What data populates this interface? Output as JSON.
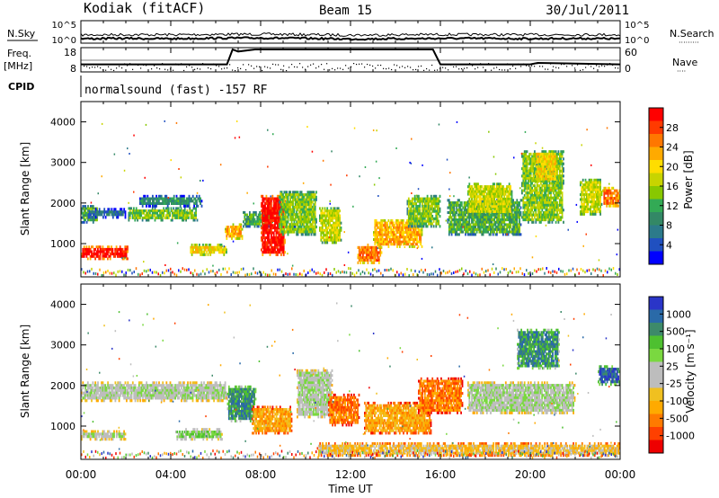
{
  "header": {
    "station": "Kodiak (fitACF)",
    "beam": "Beam 15",
    "date": "30/Jul/2011",
    "cpid_label": "CPID",
    "cpid_value": "normalsound (fast) -157 RF"
  },
  "strip_nsky": {
    "left_label": "N.Sky",
    "right_label": "N.Search",
    "right_dots": "·········",
    "left_ticks": [
      "10^5",
      "10^0"
    ],
    "right_ticks": [
      "10^5",
      "10^0"
    ]
  },
  "strip_freq": {
    "left_label_1": "Freq.",
    "left_label_2": "[MHz]",
    "right_label": "Nave",
    "right_dots": "····",
    "left_ticks": [
      18,
      8
    ],
    "right_ticks": [
      60,
      0
    ]
  },
  "panels": {
    "power": {
      "ylabel": "Slant Range [km]",
      "colorbar_label": "Power [dB]",
      "colorbar_ticks": [
        "28",
        "24",
        "20",
        "16",
        "12",
        "8",
        "4"
      ],
      "colors": [
        "#ff0000",
        "#ff3a00",
        "#ff7700",
        "#ffaa00",
        "#ffdd00",
        "#c8d400",
        "#88c800",
        "#33aa55",
        "#338866",
        "#2c7a8a",
        "#2050c0",
        "#0000ff"
      ]
    },
    "velocity": {
      "ylabel": "Slant Range [km]",
      "colorbar_label": "Velocity [m s⁻¹]",
      "colorbar_ticks": [
        "1000",
        "500",
        "100",
        "25",
        "-25",
        "-100",
        "-500",
        "-1000"
      ],
      "colors": [
        "#2a35c8",
        "#2a6aa8",
        "#3d8a6a",
        "#4ec030",
        "#7ad840",
        "#bdbdbd",
        "#bdbdbd",
        "#f0c020",
        "#ffaa00",
        "#ff7a00",
        "#ff4000",
        "#ee0000"
      ]
    }
  },
  "x_axis": {
    "label": "Time UT",
    "ticks": [
      "00:00",
      "04:00",
      "08:00",
      "12:00",
      "16:00",
      "20:00",
      "00:00"
    ]
  },
  "chart_data": [
    {
      "type": "line",
      "title": "Kodiak (fitACF)",
      "series": [
        {
          "name": "N.Sky",
          "x": [
            "00:00",
            "02:00",
            "04:00",
            "06:00",
            "08:00",
            "10:00",
            "12:00",
            "14:00",
            "16:00",
            "18:00",
            "20:00",
            "22:00",
            "24:00"
          ],
          "values": [
            50,
            60,
            55,
            70,
            80,
            60,
            45,
            55,
            65,
            60,
            55,
            60,
            55
          ]
        },
        {
          "name": "N.Search",
          "x": [
            "00:00",
            "02:00",
            "04:00",
            "06:00",
            "08:00",
            "10:00",
            "12:00",
            "14:00",
            "16:00",
            "18:00",
            "20:00",
            "22:00",
            "24:00"
          ],
          "values": [
            5,
            6,
            5,
            7,
            8,
            6,
            4,
            5,
            6,
            6,
            5,
            6,
            5
          ]
        }
      ],
      "ylim": [
        1,
        100000
      ],
      "yscale": "log"
    },
    {
      "type": "line",
      "series": [
        {
          "name": "Freq.",
          "x": [
            "00:00",
            "06:30",
            "06:45",
            "07:00",
            "07:45",
            "15:40",
            "16:00",
            "20:00",
            "20:20",
            "24:00"
          ],
          "values": [
            10.8,
            10.8,
            18,
            17,
            18,
            18,
            10.8,
            10.8,
            11.5,
            10.8
          ]
        }
      ],
      "ylim": [
        8,
        18
      ]
    },
    {
      "type": "heatmap",
      "title": "Power [dB]",
      "xlabel": "Time UT",
      "ylabel": "Slant Range [km]",
      "xlim": [
        0,
        24
      ],
      "ylim": [
        180,
        4500
      ],
      "yticks": [
        1000,
        2000,
        3000,
        4000
      ],
      "color_scale": [
        4,
        32
      ],
      "regions": [
        {
          "t0": 0.0,
          "t1": 2.1,
          "r0": 600,
          "r1": 950,
          "level": 0
        },
        {
          "t0": 0.0,
          "t1": 0.8,
          "r0": 1500,
          "r1": 1950,
          "level": 7
        },
        {
          "t0": 0.3,
          "t1": 2.0,
          "r0": 1620,
          "r1": 1880,
          "level": 9
        },
        {
          "t0": 2.1,
          "t1": 5.2,
          "r0": 1550,
          "r1": 1900,
          "level": 6
        },
        {
          "t0": 2.6,
          "t1": 5.4,
          "r0": 1900,
          "r1": 2200,
          "level": 8
        },
        {
          "t0": 4.8,
          "t1": 6.5,
          "r0": 700,
          "r1": 1000,
          "level": 4
        },
        {
          "t0": 6.4,
          "t1": 7.2,
          "r0": 1100,
          "r1": 1500,
          "level": 3
        },
        {
          "t0": 7.2,
          "t1": 8.6,
          "r0": 1400,
          "r1": 1800,
          "level": 7
        },
        {
          "t0": 8.0,
          "t1": 9.1,
          "r0": 700,
          "r1": 2200,
          "level": 0
        },
        {
          "t0": 8.8,
          "t1": 10.5,
          "r0": 1200,
          "r1": 2300,
          "level": 6
        },
        {
          "t0": 10.6,
          "t1": 11.6,
          "r0": 1000,
          "r1": 1900,
          "level": 5
        },
        {
          "t0": 12.3,
          "t1": 13.4,
          "r0": 500,
          "r1": 1000,
          "level": 2
        },
        {
          "t0": 13.0,
          "t1": 15.2,
          "r0": 900,
          "r1": 1600,
          "level": 3
        },
        {
          "t0": 14.5,
          "t1": 16.0,
          "r0": 1400,
          "r1": 2200,
          "level": 6
        },
        {
          "t0": 16.3,
          "t1": 19.6,
          "r0": 1200,
          "r1": 2100,
          "level": 7
        },
        {
          "t0": 17.2,
          "t1": 19.2,
          "r0": 1700,
          "r1": 2500,
          "level": 5
        },
        {
          "t0": 19.6,
          "t1": 21.5,
          "r0": 1500,
          "r1": 3300,
          "level": 6
        },
        {
          "t0": 20.2,
          "t1": 21.2,
          "r0": 2500,
          "r1": 3300,
          "level": 4
        },
        {
          "t0": 22.2,
          "t1": 23.2,
          "r0": 1700,
          "r1": 2600,
          "level": 5
        },
        {
          "t0": 23.2,
          "t1": 24.0,
          "r0": 1900,
          "r1": 2400,
          "level": 2
        }
      ]
    },
    {
      "type": "heatmap",
      "title": "Velocity [m s⁻¹]",
      "xlabel": "Time UT",
      "ylabel": "Slant Range [km]",
      "xlim": [
        0,
        24
      ],
      "ylim": [
        180,
        4500
      ],
      "yticks": [
        1000,
        2000,
        3000,
        4000
      ],
      "color_scale": [
        -1000,
        1000
      ],
      "regions": [
        {
          "t0": 0.0,
          "t1": 2.0,
          "r0": 650,
          "r1": 900,
          "level": 5
        },
        {
          "t0": 0.0,
          "t1": 6.5,
          "r0": 1600,
          "r1": 2100,
          "level": 5
        },
        {
          "t0": 4.2,
          "t1": 6.3,
          "r0": 650,
          "r1": 950,
          "level": 4
        },
        {
          "t0": 6.5,
          "t1": 7.8,
          "r0": 1100,
          "r1": 2000,
          "level": 2
        },
        {
          "t0": 7.6,
          "t1": 9.4,
          "r0": 800,
          "r1": 1500,
          "level": 8
        },
        {
          "t0": 9.6,
          "t1": 11.2,
          "r0": 1200,
          "r1": 2400,
          "level": 5
        },
        {
          "t0": 11.0,
          "t1": 12.4,
          "r0": 1000,
          "r1": 1800,
          "level": 9
        },
        {
          "t0": 12.6,
          "t1": 15.6,
          "r0": 800,
          "r1": 1600,
          "level": 8
        },
        {
          "t0": 15.0,
          "t1": 17.0,
          "r0": 1300,
          "r1": 2200,
          "level": 9
        },
        {
          "t0": 17.2,
          "t1": 22.0,
          "r0": 1300,
          "r1": 2100,
          "level": 5
        },
        {
          "t0": 19.4,
          "t1": 21.3,
          "r0": 2400,
          "r1": 3400,
          "level": 2
        },
        {
          "t0": 23.0,
          "t1": 24.0,
          "r0": 2000,
          "r1": 2500,
          "level": 1
        },
        {
          "t0": 10.5,
          "t1": 24.0,
          "r0": 250,
          "r1": 600,
          "level": 7
        }
      ]
    }
  ]
}
